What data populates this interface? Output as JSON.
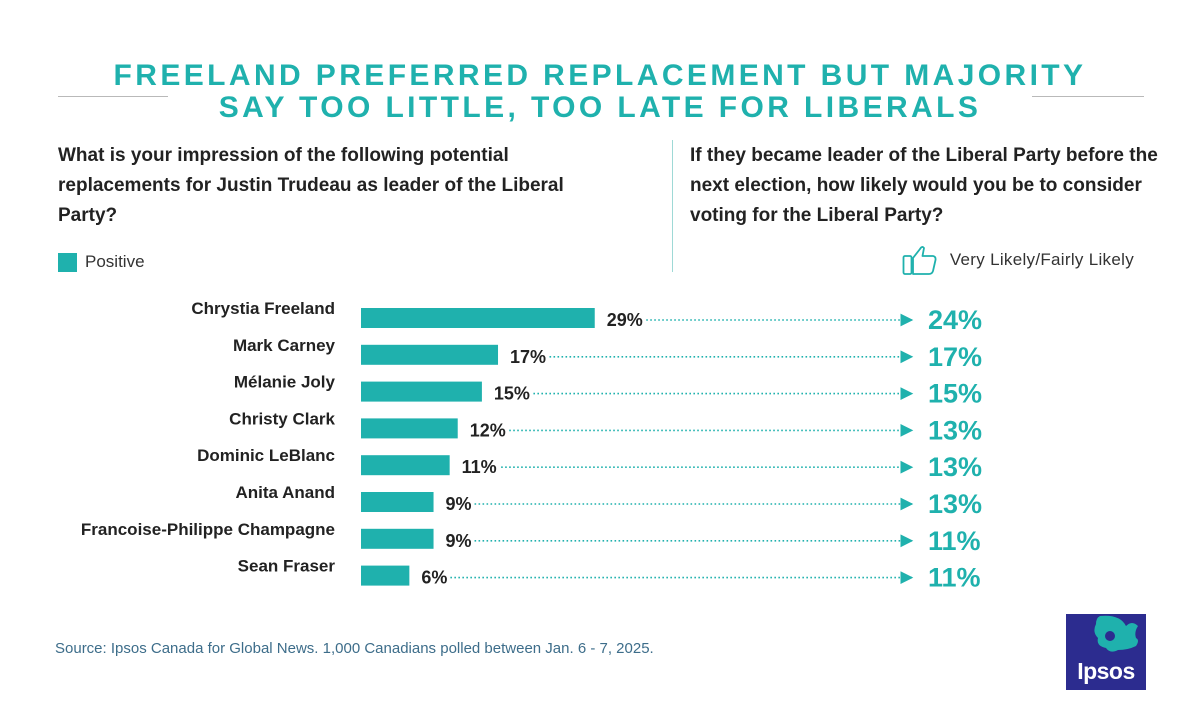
{
  "title": {
    "line1": "FREELAND PREFERRED REPLACEMENT BUT MAJORITY",
    "line2": "SAY TOO LITTLE, TOO LATE FOR LIBERALS"
  },
  "question_left": "What is your impression of the following potential replacements for Justin Trudeau as leader of the Liberal Party?",
  "question_right": "If they became leader of the Liberal Party before the next election, how likely would you be to consider voting for the Liberal Party?",
  "legend_left": {
    "label": "Positive",
    "color": "#1fb1ad"
  },
  "legend_right": {
    "label": "Very Likely/Fairly Likely",
    "icon": "thumbs-up-icon"
  },
  "source": "Source: Ipsos Canada for Global News. 1,000 Canadians polled between Jan. 6 - 7, 2025.",
  "logo": {
    "text": "Ipsos",
    "color": "#2c2c8f",
    "accent": "#1fb1ad"
  },
  "colors": {
    "accent": "#1fb1ad",
    "text": "#1a1a1a",
    "source": "#3d6d8a"
  },
  "chart_data": {
    "type": "bar",
    "orientation": "horizontal",
    "categories": [
      "Chrystia Freeland",
      "Mark Carney",
      "Mélanie Joly",
      "Christy Clark",
      "Dominic LeBlanc",
      "Anita Anand",
      "Francoise-Philippe Champagne",
      "Sean Fraser"
    ],
    "series": [
      {
        "name": "Positive",
        "values": [
          29,
          17,
          15,
          12,
          11,
          9,
          9,
          6
        ],
        "labels": [
          "29%",
          "17%",
          "15%",
          "12%",
          "11%",
          "9%",
          "9%",
          "6%"
        ]
      },
      {
        "name": "Very Likely/Fairly Likely",
        "values": [
          24,
          17,
          15,
          13,
          13,
          13,
          11,
          11
        ],
        "labels": [
          "24%",
          "17%",
          "15%",
          "13%",
          "13%",
          "13%",
          "11%",
          "11%"
        ]
      }
    ],
    "xlim": [
      0,
      100
    ],
    "title": "FREELAND PREFERRED REPLACEMENT BUT MAJORITY SAY TOO LITTLE, TOO LATE FOR LIBERALS",
    "xlabel": "",
    "ylabel": ""
  }
}
